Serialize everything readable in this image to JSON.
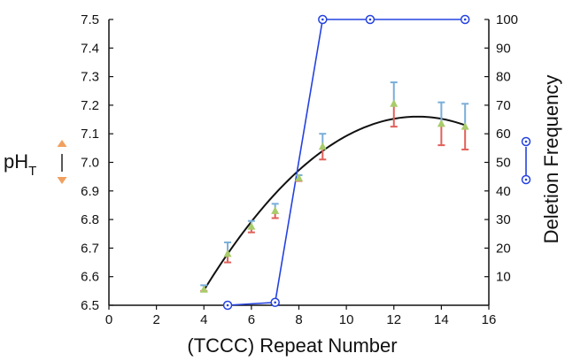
{
  "chart_data": {
    "type": "scatter",
    "xlabel": "(TCCC) Repeat Number",
    "ylabel_left": {
      "main": "pH",
      "sub": "T"
    },
    "ylabel_right": "Deletion Frequency",
    "xlim": [
      0,
      16
    ],
    "ylim_left": [
      6.5,
      7.5
    ],
    "ylim_right": [
      0,
      100
    ],
    "x_ticks": [
      "0",
      "2",
      "4",
      "6",
      "8",
      "10",
      "12",
      "14",
      "16"
    ],
    "y_left_ticks": [
      "6.5",
      "6.6",
      "6.7",
      "6.8",
      "6.9",
      "7.0",
      "7.1",
      "7.2",
      "7.3",
      "7.4",
      "7.5"
    ],
    "y_right_ticks": [
      "10",
      "20",
      "30",
      "40",
      "50",
      "60",
      "70",
      "80",
      "90",
      "100"
    ],
    "grid": false,
    "series": [
      {
        "marker": "triangle",
        "axis": "left",
        "points": [
          {
            "x": 4,
            "y": 6.555,
            "hi": 6.57,
            "lo": 6.55
          },
          {
            "x": 5,
            "y": 6.68,
            "hi": 6.72,
            "lo": 6.65
          },
          {
            "x": 6,
            "y": 6.775,
            "hi": 6.795,
            "lo": 6.755
          },
          {
            "x": 7,
            "y": 6.83,
            "hi": 6.855,
            "lo": 6.805
          },
          {
            "x": 8,
            "y": 6.945,
            "hi": 6.955,
            "lo": 6.935
          },
          {
            "x": 9,
            "y": 7.055,
            "hi": 7.1,
            "lo": 7.01
          },
          {
            "x": 12,
            "y": 7.205,
            "hi": 7.28,
            "lo": 7.125
          },
          {
            "x": 14,
            "y": 7.135,
            "hi": 7.21,
            "lo": 7.06
          },
          {
            "x": 15,
            "y": 7.125,
            "hi": 7.205,
            "lo": 7.045
          }
        ]
      },
      {
        "marker": "circle",
        "axis": "right",
        "x": [
          5,
          7,
          9,
          11,
          15
        ],
        "y": [
          0,
          1,
          100,
          100,
          100
        ]
      }
    ],
    "fit_curve": {
      "axis": "left",
      "x_range": [
        4,
        15
      ],
      "vertex_x": 13,
      "vertex_y": 7.16,
      "a": -0.0075
    },
    "colors": {
      "fit": "#111111",
      "deletion": "#2442e0",
      "triangle": "#a8cc6a",
      "err_upper": "#7aaed8",
      "err_lower": "#e0605a",
      "legend_triangle": "#f0a060"
    }
  }
}
